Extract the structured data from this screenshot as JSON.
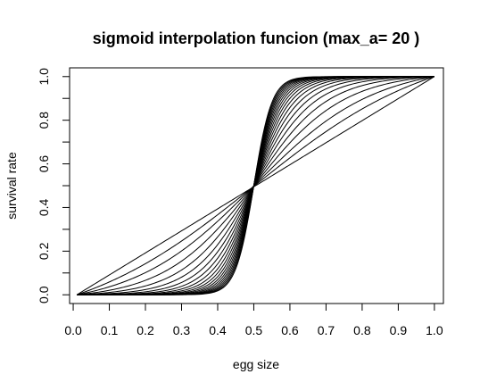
{
  "chart_data": {
    "type": "line",
    "title": "sigmoid interpolation funcion (max_a= 20 )",
    "xlabel": "egg size",
    "ylabel": "survival rate",
    "xlim": [
      -0.01,
      1.025
    ],
    "ylim": [
      -0.04,
      1.04
    ],
    "x_ticks": [
      "0.0",
      "0.1",
      "0.2",
      "0.3",
      "0.4",
      "0.5",
      "0.6",
      "0.7",
      "0.8",
      "0.9",
      "1.0"
    ],
    "x_tick_values": [
      0.0,
      0.1,
      0.2,
      0.3,
      0.4,
      0.5,
      0.6,
      0.7,
      0.8,
      0.9,
      1.0
    ],
    "y_ticks": [
      "0.0",
      "0.2",
      "0.4",
      "0.6",
      "0.8",
      "1.0"
    ],
    "y_tick_values": [
      0.0,
      0.2,
      0.4,
      0.6,
      0.8,
      1.0
    ],
    "y_minor_tick_values": [
      0.1,
      0.3,
      0.5,
      0.7,
      0.9
    ],
    "grid": false,
    "line_color": "#000000",
    "x_domain": [
      0.01,
      1.0
    ],
    "midpoint": 0.5,
    "max_a": 20,
    "curve_steepness_a": [
      1,
      2,
      3,
      4,
      5,
      6,
      7,
      8,
      9,
      10,
      11,
      12,
      13,
      14,
      15,
      16,
      17,
      18,
      19,
      20
    ]
  }
}
